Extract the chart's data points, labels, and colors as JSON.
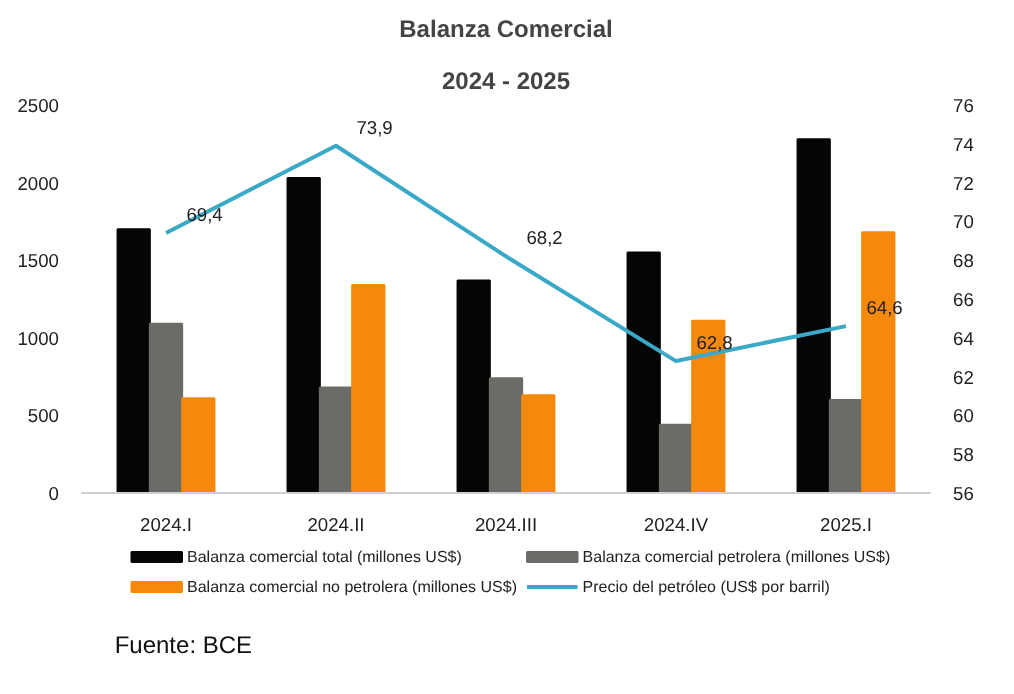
{
  "chart_data": {
    "type": "bar",
    "title": "Balanza Comercial",
    "subtitle": "2024 - 2025",
    "categories": [
      "2024.I",
      "2024.II",
      "2024.III",
      "2024.IV",
      "2025.I"
    ],
    "series": [
      {
        "name": "Balanza comercial total (millones US$)",
        "color": "#050505",
        "values": [
          1700,
          2030,
          1370,
          1550,
          2280
        ]
      },
      {
        "name": "Balanza comercial petrolera (millones US$)",
        "color": "#6b6b67",
        "values": [
          1090,
          680,
          740,
          440,
          600
        ]
      },
      {
        "name": "Balanza comercial no petrolera (millones US$)",
        "color": "#f5890d",
        "values": [
          610,
          1340,
          630,
          1110,
          1680
        ]
      },
      {
        "name": "Precio del petróleo (US$ por barril)",
        "color": "#3aa9c8",
        "type": "line",
        "axis": "y2",
        "values": [
          69.4,
          73.9,
          68.2,
          62.8,
          64.6
        ],
        "value_labels": [
          "69,4",
          "73,9",
          "68,2",
          "62,8",
          "64,6"
        ]
      }
    ],
    "ylim": [
      0,
      2500
    ],
    "yticks": [
      0,
      500,
      1000,
      1500,
      2000,
      2500
    ],
    "y2lim": [
      56,
      76
    ],
    "y2ticks": [
      56,
      58,
      60,
      62,
      64,
      66,
      68,
      70,
      72,
      74,
      76
    ],
    "legend": "bottom",
    "grid": false,
    "annotations": [
      "Fuente: BCE"
    ]
  }
}
